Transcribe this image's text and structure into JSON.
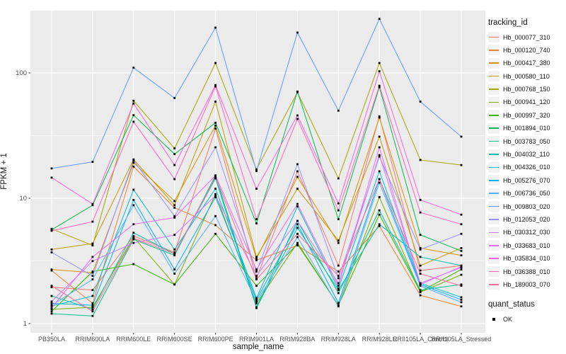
{
  "figure": {
    "y_axis": {
      "title": "FPKM + 1",
      "tick_labels": [
        "1",
        "10",
        "100"
      ]
    },
    "x_axis": {
      "title": "sample_name"
    },
    "legend": {
      "tracking_title": "tracking_id",
      "quant_title": "quant_status",
      "quant_items": [
        {
          "label": "OK",
          "marker": "black-square"
        }
      ]
    },
    "colors": {
      "panel_bg": "#EBEBEB",
      "grid": "#FFFFFF",
      "tick_text": "#4D4D4D",
      "axis_title_text": "#111111",
      "point": "#000000",
      "legend_key_bg": "#F2F2F2"
    }
  },
  "chart_data": {
    "type": "line",
    "title": "",
    "xlabel": "sample_name",
    "ylabel": "FPKM + 1",
    "y_scale": "log10",
    "ylim": [
      0.85,
      320
    ],
    "y_ticks": [
      1,
      10,
      100
    ],
    "y_minor_ticks": [
      3.1623,
      31.623,
      316.23
    ],
    "grid": true,
    "legend_position": "right",
    "point_marker": "black-square",
    "categories": [
      "PB350LA",
      "RRIM600LA",
      "RRIM600LE",
      "RRIM600SE",
      "RRIM600PE",
      "RRIM901LA",
      "RRIM928BA",
      "RRIM928LA",
      "RRIM928LE",
      "RRII105LA_Control",
      "RRII105LA_Stressed"
    ],
    "series": [
      {
        "name": "Hb_000077_310",
        "color": "#F8766D",
        "values": [
          1.95,
          1.85,
          5.0,
          3.7,
          36,
          2.3,
          16.4,
          2.9,
          45,
          2.65,
          2.9
        ]
      },
      {
        "name": "Hb_000120_740",
        "color": "#EA8331",
        "values": [
          2.65,
          1.45,
          17.9,
          8.4,
          6.1,
          3.2,
          4.2,
          2.6,
          6.0,
          1.68,
          1.37
        ]
      },
      {
        "name": "Hb_000417_380",
        "color": "#D89000",
        "values": [
          2.7,
          2.55,
          19.2,
          9.5,
          38,
          3.3,
          14.8,
          4.4,
          44,
          4.0,
          3.5
        ]
      },
      {
        "name": "Hb_000580_110",
        "color": "#C09B00",
        "values": [
          3.9,
          4.35,
          20.4,
          8.8,
          59,
          3.4,
          11.9,
          4.6,
          31,
          2.9,
          4.0
        ]
      },
      {
        "name": "Hb_000768_150",
        "color": "#A3A500",
        "values": [
          5.7,
          4.2,
          60,
          25,
          120,
          17,
          70,
          14.4,
          120,
          20.2,
          18.4
        ]
      },
      {
        "name": "Hb_000941_120",
        "color": "#7CAE00",
        "values": [
          1.3,
          1.35,
          4.9,
          2.05,
          10.8,
          1.45,
          4.4,
          1.4,
          10.2,
          1.78,
          2.45
        ]
      },
      {
        "name": "Hb_000997_320",
        "color": "#39B600",
        "values": [
          1.25,
          2.6,
          2.98,
          2.05,
          5.2,
          2.0,
          4.3,
          1.4,
          7.4,
          1.8,
          2.7
        ]
      },
      {
        "name": "Hb_001894_010",
        "color": "#00BB4E",
        "values": [
          5.6,
          8.8,
          46,
          22.5,
          40,
          6.3,
          71,
          6.8,
          77,
          5.1,
          3.8
        ]
      },
      {
        "name": "Hb_003783_050",
        "color": "#00C087",
        "values": [
          1.2,
          1.15,
          4.7,
          3.5,
          15.2,
          1.35,
          6.6,
          1.75,
          8.0,
          1.85,
          2.05
        ]
      },
      {
        "name": "Hb_004032_110",
        "color": "#00C0AF",
        "values": [
          1.66,
          1.3,
          5.3,
          3.6,
          14.4,
          1.33,
          5.8,
          1.85,
          6.2,
          3.4,
          2.9
        ]
      },
      {
        "name": "Hb_004326_010",
        "color": "#00BCD8",
        "values": [
          1.38,
          1.66,
          11.7,
          3.9,
          11.9,
          1.6,
          8.6,
          1.9,
          16.4,
          2.1,
          1.62
        ]
      },
      {
        "name": "Hb_005276_070",
        "color": "#00B0F6",
        "values": [
          1.45,
          1.4,
          9.7,
          2.7,
          10.2,
          1.55,
          6.2,
          1.46,
          14.2,
          2.05,
          1.55
        ]
      },
      {
        "name": "Hb_006736_050",
        "color": "#4FB0FF",
        "values": [
          1.4,
          2.25,
          8.8,
          2.5,
          7.2,
          1.5,
          4.9,
          1.37,
          13.3,
          2.0,
          1.48
        ]
      },
      {
        "name": "Hb_009803_020",
        "color": "#6198FF",
        "values": [
          17.3,
          19.5,
          110,
          63,
          230,
          16.5,
          210,
          50,
          270,
          59,
          31
        ]
      },
      {
        "name": "Hb_012053_020",
        "color": "#9590FF",
        "values": [
          3.7,
          2.4,
          20.0,
          7.2,
          25.5,
          2.6,
          18.7,
          2.3,
          21.5,
          3.9,
          5.2
        ]
      },
      {
        "name": "Hb_030312_030",
        "color": "#C77CFF",
        "values": [
          1.5,
          3.15,
          4.4,
          5.1,
          10.5,
          2.4,
          6.6,
          2.1,
          22.1,
          2.1,
          2.8
        ]
      },
      {
        "name": "Hb_033683_010",
        "color": "#E76BF3",
        "values": [
          1.33,
          3.4,
          6.2,
          7.0,
          15.2,
          2.7,
          9.0,
          2.0,
          25.5,
          2.05,
          2.85
        ]
      },
      {
        "name": "Hb_035834_010",
        "color": "#FA62DB",
        "values": [
          14.6,
          9.0,
          57,
          18.4,
          80,
          11.9,
          45.8,
          9.1,
          103,
          9.7,
          7.4
        ]
      },
      {
        "name": "Hb_036388_010",
        "color": "#FF62BC",
        "values": [
          5.5,
          6.5,
          40.8,
          14.2,
          78,
          6.8,
          42.9,
          8.0,
          79,
          7.7,
          6.2
        ]
      },
      {
        "name": "Hb_189003_070",
        "color": "#FF6A98",
        "values": [
          2.0,
          1.25,
          4.8,
          3.6,
          14.8,
          2.25,
          5.2,
          2.4,
          14.2,
          2.5,
          2.0
        ]
      }
    ]
  }
}
